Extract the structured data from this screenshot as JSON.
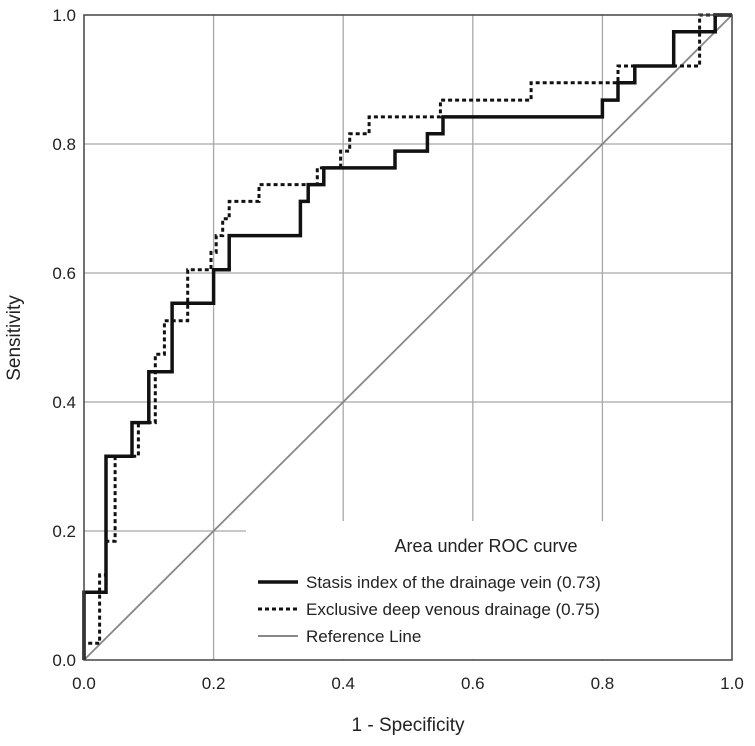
{
  "chart_data": {
    "type": "line",
    "xlabel": "1 - Specificity",
    "ylabel": "Sensitivity",
    "xlim": [
      0,
      1
    ],
    "ylim": [
      0,
      1
    ],
    "x_ticks": [
      "0.0",
      "0.2",
      "0.4",
      "0.6",
      "0.8",
      "1.0"
    ],
    "y_ticks": [
      "0.0",
      "0.2",
      "0.4",
      "0.6",
      "0.8",
      "1.0"
    ],
    "grid": true,
    "legend": {
      "title": "Area under ROC curve",
      "position": "bottom-right"
    },
    "series": [
      {
        "name": "Stasis index of the drainage vein (0.73)",
        "style": "solid-thick",
        "color": "#111111",
        "x": [
          0,
          0,
          0.034,
          0.034,
          0.04,
          0.04,
          0.074,
          0.074,
          0.1,
          0.1,
          0.136,
          0.136,
          0.2,
          0.2,
          0.224,
          0.224,
          0.334,
          0.334,
          0.346,
          0.346,
          0.37,
          0.37,
          0.48,
          0.48,
          0.53,
          0.53,
          0.554,
          0.554,
          0.8,
          0.8,
          0.824,
          0.824,
          0.85,
          0.85,
          0.91,
          0.91,
          0.974,
          0.974,
          1
        ],
        "y": [
          0,
          0.105,
          0.105,
          0.316,
          0.316,
          0.316,
          0.316,
          0.368,
          0.368,
          0.447,
          0.447,
          0.553,
          0.553,
          0.605,
          0.605,
          0.658,
          0.658,
          0.711,
          0.711,
          0.737,
          0.737,
          0.763,
          0.763,
          0.789,
          0.789,
          0.816,
          0.816,
          0.842,
          0.842,
          0.868,
          0.868,
          0.895,
          0.895,
          0.921,
          0.921,
          0.974,
          0.974,
          1.0,
          1.0
        ]
      },
      {
        "name": "Exclusive deep venous drainage (0.75)",
        "style": "dashed",
        "color": "#111111",
        "x": [
          0,
          0,
          0.024,
          0.024,
          0.034,
          0.034,
          0.048,
          0.048,
          0.084,
          0.084,
          0.11,
          0.11,
          0.124,
          0.124,
          0.16,
          0.16,
          0.196,
          0.196,
          0.204,
          0.204,
          0.214,
          0.214,
          0.224,
          0.224,
          0.27,
          0.27,
          0.36,
          0.36,
          0.396,
          0.396,
          0.41,
          0.41,
          0.44,
          0.44,
          0.46,
          0.46,
          0.55,
          0.55,
          0.69,
          0.69,
          0.824,
          0.824,
          0.95,
          0.95,
          0.96,
          0.96,
          1
        ],
        "y": [
          0,
          0.026,
          0.026,
          0.132,
          0.132,
          0.184,
          0.184,
          0.316,
          0.316,
          0.368,
          0.368,
          0.474,
          0.474,
          0.526,
          0.526,
          0.605,
          0.605,
          0.632,
          0.632,
          0.658,
          0.658,
          0.684,
          0.684,
          0.711,
          0.711,
          0.737,
          0.737,
          0.763,
          0.763,
          0.789,
          0.789,
          0.816,
          0.816,
          0.842,
          0.842,
          0.842,
          0.842,
          0.868,
          0.868,
          0.895,
          0.895,
          0.921,
          0.921,
          1.0,
          1.0,
          1.0,
          1.0
        ]
      },
      {
        "name": "Reference Line",
        "style": "solid-thin",
        "color": "#888888",
        "x": [
          0,
          1
        ],
        "y": [
          0,
          1
        ]
      }
    ]
  }
}
